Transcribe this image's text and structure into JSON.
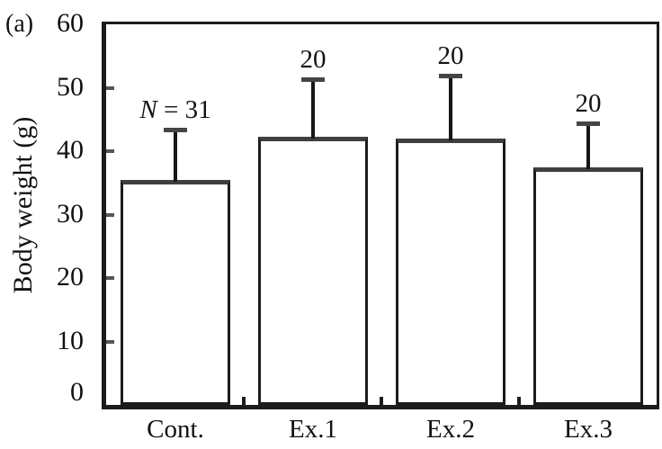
{
  "chart_data": {
    "type": "bar",
    "panel_label": "(a)",
    "title": "",
    "ylabel": "Body weight (g)",
    "xlabel": "",
    "ylim": [
      0,
      60
    ],
    "yticks": [
      0,
      10,
      20,
      30,
      40,
      50,
      60
    ],
    "categories": [
      "Cont.",
      "Ex.1",
      "Ex.2",
      "Ex.3"
    ],
    "values": [
      35.4,
      42.2,
      42.0,
      37.4
    ],
    "errors_plus": [
      7.9,
      9.0,
      9.8,
      6.9
    ],
    "bar_labels": [
      {
        "italic": "N",
        "plain": " = 31"
      },
      {
        "italic": "",
        "plain": "20"
      },
      {
        "italic": "",
        "plain": "20"
      },
      {
        "italic": "",
        "plain": "20"
      }
    ],
    "grid": false,
    "legend": "none",
    "colors": {
      "background": "#ffffff",
      "bar_fill": "#ffffff",
      "frame_line": "#1c1c1c",
      "bar_top_line": "#3f3f3f",
      "error_line": "#161616",
      "error_cap": "#454545",
      "axis_tick": "#555555",
      "text": "#111111"
    }
  }
}
